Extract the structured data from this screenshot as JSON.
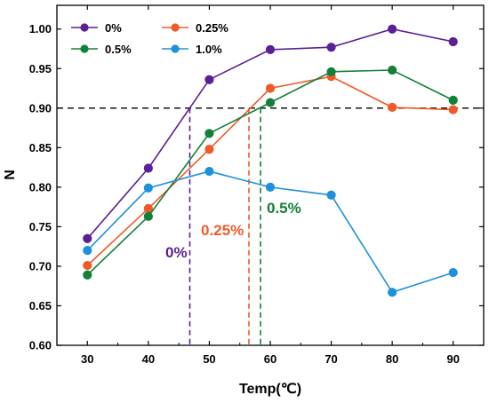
{
  "chart_data": {
    "type": "line",
    "xlabel": "Temp(℃)",
    "ylabel": "N",
    "x": [
      30,
      40,
      50,
      60,
      70,
      80,
      90
    ],
    "xlim": [
      25,
      95
    ],
    "ylim": [
      0.6,
      1.03
    ],
    "xticks": [
      "30",
      "40",
      "50",
      "60",
      "70",
      "80",
      "90"
    ],
    "yticks": [
      "0.60",
      "0.65",
      "0.70",
      "0.75",
      "0.80",
      "0.85",
      "0.90",
      "0.95",
      "1.00"
    ],
    "series": [
      {
        "name": "0%",
        "color": "#5b1f96",
        "values": [
          0.735,
          0.824,
          0.936,
          0.974,
          0.977,
          1.0,
          0.984
        ]
      },
      {
        "name": "0.25%",
        "color": "#f05a28",
        "values": [
          0.701,
          0.773,
          0.848,
          0.925,
          0.94,
          0.901,
          0.898
        ]
      },
      {
        "name": "0.5%",
        "color": "#13803a",
        "values": [
          0.689,
          0.763,
          0.868,
          0.907,
          0.946,
          0.948,
          0.91
        ]
      },
      {
        "name": "1.0%",
        "color": "#1e90dc",
        "values": [
          0.72,
          0.799,
          0.82,
          0.8,
          0.79,
          0.667,
          0.692
        ]
      }
    ],
    "reference_line": {
      "y": 0.9,
      "color": "#000000"
    },
    "crossings": [
      {
        "x": 46.8,
        "label": "0%",
        "color": "#5b1f96"
      },
      {
        "x": 56.5,
        "label": "0.25%",
        "color": "#f05a28"
      },
      {
        "x": 58.4,
        "label": "0.5%",
        "color": "#13803a"
      }
    ],
    "legend_position": "top-left",
    "grid": false
  }
}
